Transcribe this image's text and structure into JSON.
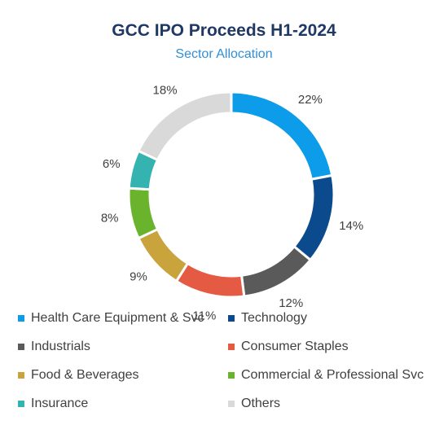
{
  "chart_data": {
    "type": "pie",
    "title": "GCC IPO Proceeds H1-2024",
    "subtitle": "Sector Allocation",
    "donut": true,
    "categories": [
      "Health Care Equipment & Svc",
      "Technology",
      "Industrials",
      "Consumer Staples",
      "Food & Beverages",
      "Commercial & Professional Svc",
      "Insurance",
      "Others"
    ],
    "values": [
      22,
      14,
      12,
      11,
      9,
      8,
      6,
      18
    ],
    "labels": [
      "22%",
      "14%",
      "12%",
      "11%",
      "9%",
      "8%",
      "6%",
      "18%"
    ],
    "colors": [
      "#0d9cea",
      "#0b4a8c",
      "#5a5a5a",
      "#e55a43",
      "#c9a33c",
      "#6ab42d",
      "#34b3b0",
      "#d9d9d9"
    ],
    "legend_position": "bottom"
  }
}
